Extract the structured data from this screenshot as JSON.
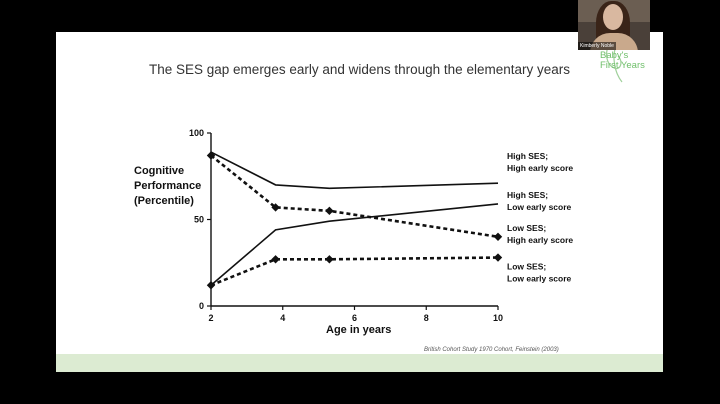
{
  "slide": {
    "title": "The SES gap emerges early and widens through the elementary years",
    "logo": {
      "line1": "Baby's",
      "line2": "First Years"
    },
    "citation": "British Cohort Study 1970 Cohort, Feinstein (2003)",
    "ylabel_lines": [
      "Cognitive",
      "Performance",
      "(Percentile)"
    ],
    "xlabel": "Age in years"
  },
  "video": {
    "participant_name": "Kimberly Noble"
  },
  "colors": {
    "footer": "#dcebd2",
    "logo": "#6fbf6a",
    "line": "#111111"
  },
  "chart_data": {
    "type": "line",
    "xlabel": "Age in years",
    "ylabel": "Cognitive Performance (Percentile)",
    "xlim": [
      2,
      10
    ],
    "ylim": [
      0,
      100
    ],
    "xticks": [
      2,
      4,
      6,
      8,
      10
    ],
    "yticks": [
      0,
      50,
      100
    ],
    "series": [
      {
        "name": "High SES; High early score",
        "label_lines": [
          "High SES;",
          "High early score"
        ],
        "style": "solid",
        "markers": false,
        "x": [
          2,
          3.8,
          5.3,
          10
        ],
        "y": [
          89,
          70,
          68,
          71
        ]
      },
      {
        "name": "High SES; Low early score",
        "label_lines": [
          "High SES;",
          "Low early score"
        ],
        "style": "solid",
        "markers": false,
        "x": [
          2,
          3.8,
          5.3,
          10
        ],
        "y": [
          12,
          44,
          49,
          59
        ]
      },
      {
        "name": "Low SES; High early score",
        "label_lines": [
          "Low SES;",
          "High early score"
        ],
        "style": "dashed",
        "markers": true,
        "x": [
          2,
          3.8,
          5.3,
          10
        ],
        "y": [
          87,
          57,
          55,
          40
        ]
      },
      {
        "name": "Low SES; Low early score",
        "label_lines": [
          "Low SES;",
          "Low early score"
        ],
        "style": "dashed",
        "markers": true,
        "x": [
          2,
          3.8,
          5.3,
          10
        ],
        "y": [
          12,
          27,
          27,
          28
        ]
      }
    ]
  }
}
